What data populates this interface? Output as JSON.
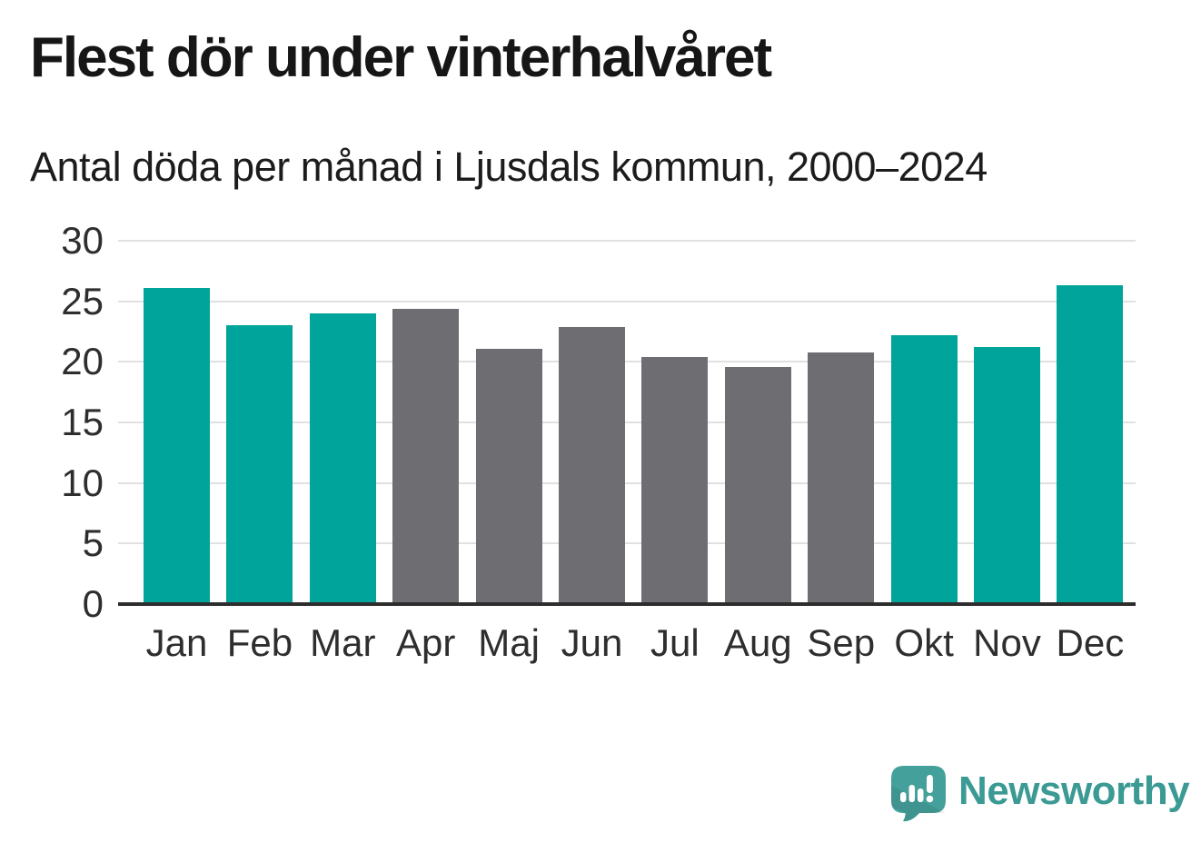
{
  "header": {
    "title": "Flest dör under vinterhalvåret",
    "subtitle": "Antal döda per månad i Ljusdals kommun, 2000–2024"
  },
  "chart_data": {
    "type": "bar",
    "title": "Flest dör under vinterhalvåret",
    "subtitle": "Antal döda per månad i Ljusdals kommun, 2000–2024",
    "categories": [
      "Jan",
      "Feb",
      "Mar",
      "Apr",
      "Maj",
      "Jun",
      "Jul",
      "Aug",
      "Sep",
      "Okt",
      "Nov",
      "Dec"
    ],
    "values": [
      26.1,
      23.0,
      24.0,
      24.4,
      21.1,
      22.9,
      20.4,
      19.6,
      20.8,
      22.2,
      21.2,
      26.3
    ],
    "highlighted": [
      true,
      true,
      true,
      false,
      false,
      false,
      false,
      false,
      false,
      true,
      true,
      true
    ],
    "xlabel": "",
    "ylabel": "",
    "ylim": [
      0,
      30
    ],
    "yticks": [
      0,
      5,
      10,
      15,
      20,
      25,
      30
    ],
    "grid": "horizontal",
    "legend_position": "none",
    "colors": {
      "highlight_bar": "#00a49b",
      "neutral_bar": "#6e6d72",
      "gridline": "#e1e1e1",
      "axis_line": "#2d2d2d",
      "tick_label": "#2e2e2e",
      "title_text": "#161616"
    }
  },
  "branding": {
    "name": "Newsworthy",
    "text_color": "#3b9a94",
    "logo_color": "#44a09a",
    "logo_icon": "newsworthy-speech-bubble-chart-icon"
  }
}
